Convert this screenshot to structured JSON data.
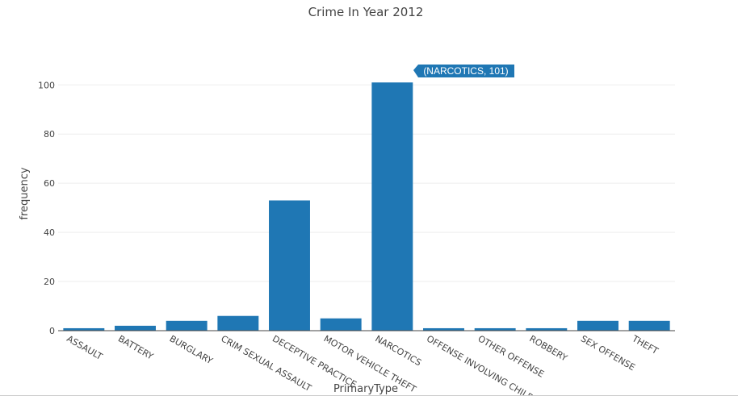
{
  "chart_data": {
    "type": "bar",
    "title": "Crime In Year 2012",
    "xlabel": "PrimaryType",
    "ylabel": "frequency",
    "categories": [
      "ASSAULT",
      "BATTERY",
      "BURGLARY",
      "CRIM SEXUAL ASSAULT",
      "DECEPTIVE PRACTICE",
      "MOTOR VEHICLE THEFT",
      "NARCOTICS",
      "OFFENSE INVOLVING CHILDREN",
      "OTHER OFFENSE",
      "ROBBERY",
      "SEX OFFENSE",
      "THEFT"
    ],
    "values": [
      1,
      2,
      4,
      6,
      53,
      5,
      101,
      1,
      1,
      1,
      4,
      4
    ],
    "ylim": [
      0,
      106
    ],
    "yticks": [
      0,
      20,
      40,
      60,
      80,
      100
    ],
    "grid": true,
    "bar_color": "#1f77b4",
    "tooltip": {
      "category_index": 6,
      "label": "(NARCOTICS, 101)"
    }
  }
}
